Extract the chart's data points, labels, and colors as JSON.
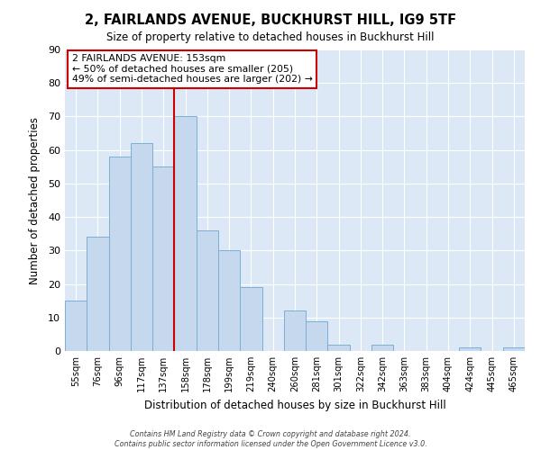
{
  "title": "2, FAIRLANDS AVENUE, BUCKHURST HILL, IG9 5TF",
  "subtitle": "Size of property relative to detached houses in Buckhurst Hill",
  "xlabel": "Distribution of detached houses by size in Buckhurst Hill",
  "ylabel": "Number of detached properties",
  "bar_labels": [
    "55sqm",
    "76sqm",
    "96sqm",
    "117sqm",
    "137sqm",
    "158sqm",
    "178sqm",
    "199sqm",
    "219sqm",
    "240sqm",
    "260sqm",
    "281sqm",
    "301sqm",
    "322sqm",
    "342sqm",
    "363sqm",
    "383sqm",
    "404sqm",
    "424sqm",
    "445sqm",
    "465sqm"
  ],
  "bar_values": [
    15,
    34,
    58,
    62,
    55,
    70,
    36,
    30,
    19,
    0,
    12,
    9,
    2,
    0,
    2,
    0,
    0,
    0,
    1,
    0,
    1
  ],
  "bar_color": "#c5d8ee",
  "bar_edge_color": "#7aafd4",
  "vline_color": "#cc0000",
  "vline_x_idx": 5,
  "annotation_text_line1": "2 FAIRLANDS AVENUE: 153sqm",
  "annotation_text_line2": "← 50% of detached houses are smaller (205)",
  "annotation_text_line3": "49% of semi-detached houses are larger (202) →",
  "ylim": [
    0,
    90
  ],
  "yticks": [
    0,
    10,
    20,
    30,
    40,
    50,
    60,
    70,
    80,
    90
  ],
  "footer_line1": "Contains HM Land Registry data © Crown copyright and database right 2024.",
  "footer_line2": "Contains public sector information licensed under the Open Government Licence v3.0.",
  "bg_color": "#dce8f5",
  "fig_bg_color": "#ffffff",
  "grid_color": "#ffffff",
  "annotation_box_edge_color": "#cc0000",
  "annotation_box_face_color": "#ffffff"
}
